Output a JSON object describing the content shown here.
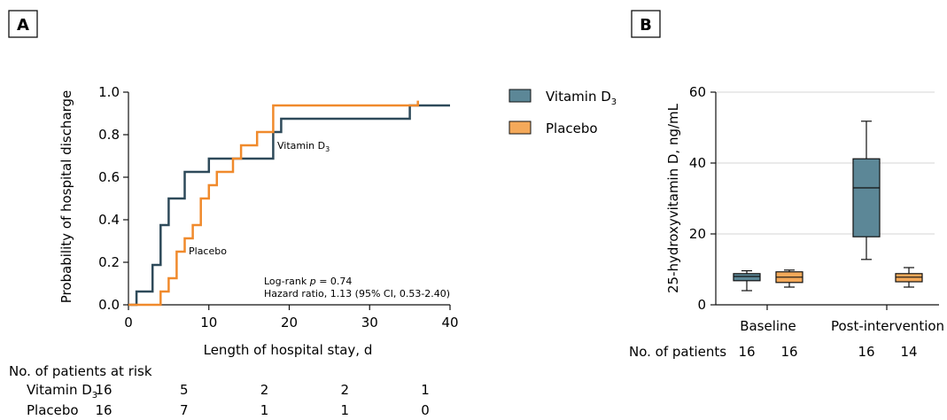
{
  "panels": {
    "a_label": "A",
    "b_label": "B"
  },
  "legend": {
    "vitamin_base": "Vitamin D",
    "vitamin_sub": "3",
    "vitamin_color": "#5c8797",
    "placebo": "Placebo",
    "placebo_color": "#f4a95a"
  },
  "chart_data": [
    {
      "type": "line",
      "xlabel": "Length of hospital stay, d",
      "ylabel": "Probability of hospital discharge",
      "xlim": [
        0,
        40
      ],
      "ylim": [
        0,
        1
      ],
      "x_ticks": [
        0,
        10,
        20,
        30,
        40
      ],
      "y_ticks": [
        "0.0",
        "0.2",
        "0.4",
        "0.6",
        "0.8",
        "1.0"
      ],
      "series": [
        {
          "name": "Vitamin D3",
          "color": "#2e4a5a",
          "points": [
            [
              0,
              0
            ],
            [
              1,
              0
            ],
            [
              1,
              0.0625
            ],
            [
              3,
              0.0625
            ],
            [
              3,
              0.1875
            ],
            [
              4,
              0.1875
            ],
            [
              4,
              0.375
            ],
            [
              5,
              0.375
            ],
            [
              5,
              0.5
            ],
            [
              7,
              0.5
            ],
            [
              7,
              0.625
            ],
            [
              10,
              0.625
            ],
            [
              10,
              0.6875
            ],
            [
              18,
              0.6875
            ],
            [
              18,
              0.8125
            ],
            [
              19,
              0.8125
            ],
            [
              19,
              0.875
            ],
            [
              35,
              0.875
            ],
            [
              35,
              0.9375
            ],
            [
              40,
              0.9375
            ]
          ]
        },
        {
          "name": "Placebo",
          "color": "#f08a2c",
          "points": [
            [
              0,
              0
            ],
            [
              4,
              0
            ],
            [
              4,
              0.0625
            ],
            [
              5,
              0.0625
            ],
            [
              5,
              0.125
            ],
            [
              6,
              0.125
            ],
            [
              6,
              0.25
            ],
            [
              7,
              0.25
            ],
            [
              7,
              0.3125
            ],
            [
              8,
              0.3125
            ],
            [
              8,
              0.375
            ],
            [
              9,
              0.375
            ],
            [
              9,
              0.5
            ],
            [
              10,
              0.5
            ],
            [
              10,
              0.5625
            ],
            [
              11,
              0.5625
            ],
            [
              11,
              0.625
            ],
            [
              13,
              0.625
            ],
            [
              13,
              0.6875
            ],
            [
              14,
              0.6875
            ],
            [
              14,
              0.75
            ],
            [
              16,
              0.75
            ],
            [
              16,
              0.8125
            ],
            [
              18,
              0.8125
            ],
            [
              18,
              0.9375
            ],
            [
              36,
              0.9375
            ],
            [
              36,
              0.96
            ]
          ]
        }
      ],
      "annotations": {
        "vitamin_base": "Vitamin D",
        "vitamin_sub": "3",
        "placebo": "Placebo",
        "logrank_prefix": "Log-rank ",
        "logrank_p": "p",
        "logrank_value": " = 0.74",
        "hazard": "Hazard ratio, 1.13 (95% CI, 0.53-2.40)"
      },
      "risk_table": {
        "title": "No. of patients at risk",
        "rows": [
          {
            "label_base": "Vitamin D",
            "label_sub": "3",
            "values": [
              "16",
              "5",
              "2",
              "2",
              "1"
            ]
          },
          {
            "label_base": "Placebo",
            "label_sub": "",
            "values": [
              "16",
              "7",
              "1",
              "1",
              "0"
            ]
          }
        ]
      }
    },
    {
      "type": "box",
      "ylabel": "25-hydroxyvitamin D, ng/mL",
      "ylim": [
        0,
        60
      ],
      "y_ticks": [
        0,
        20,
        40,
        60
      ],
      "grid": true,
      "categories": [
        "Baseline",
        "Post-intervention"
      ],
      "boxes": [
        {
          "group": "Baseline",
          "series": "Vitamin D3",
          "min": 4,
          "q1": 6.8,
          "median": 8,
          "q3": 8.8,
          "max": 9.6,
          "n": "16"
        },
        {
          "group": "Baseline",
          "series": "Placebo",
          "min": 5,
          "q1": 6.3,
          "median": 7.8,
          "q3": 9.3,
          "max": 9.8,
          "n": "16"
        },
        {
          "group": "Post-intervention",
          "series": "Vitamin D3",
          "min": 12.8,
          "q1": 19.2,
          "median": 33,
          "q3": 41.2,
          "max": 51.8,
          "n": "16"
        },
        {
          "group": "Post-intervention",
          "series": "Placebo",
          "min": 5,
          "q1": 6.5,
          "median": 7.8,
          "q3": 8.8,
          "max": 10.5,
          "n": "14"
        }
      ],
      "patients_label": "No. of patients"
    }
  ]
}
